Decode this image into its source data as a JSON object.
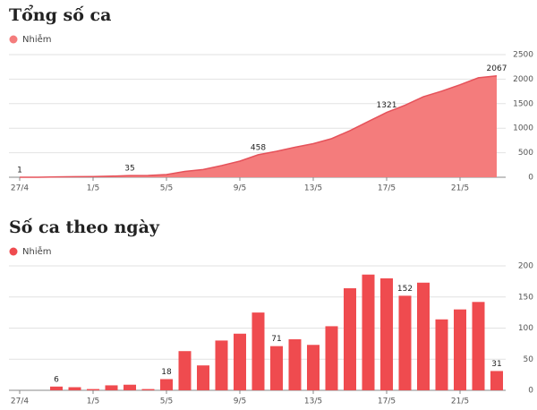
{
  "chart_data": [
    {
      "type": "area",
      "title": "Tổng số ca",
      "categories": [
        "27/4",
        null,
        null,
        null,
        "1/5",
        null,
        null,
        null,
        "5/5",
        null,
        null,
        null,
        "9/5",
        null,
        null,
        null,
        "13/5",
        null,
        null,
        null,
        "17/5",
        null,
        null,
        null,
        "21/5",
        null,
        null
      ],
      "series": [
        {
          "name": "Nhiễm",
          "color": "#f47c7c",
          "line_color": "#e5525a",
          "values": [
            1,
            1,
            7,
            12,
            14,
            22,
            35,
            37,
            55,
            118,
            158,
            238,
            329,
            458,
            529,
            611,
            684,
            787,
            951,
            1137,
            1321,
            1468,
            1641,
            1755,
            1885,
            2027,
            2067
          ],
          "value_labels": [
            "1",
            null,
            null,
            null,
            null,
            null,
            "35",
            null,
            null,
            null,
            null,
            null,
            null,
            "458",
            null,
            null,
            null,
            null,
            null,
            null,
            "1321",
            null,
            null,
            null,
            null,
            null,
            "2067"
          ]
        }
      ],
      "ylim": [
        0,
        2500
      ],
      "yticks": [
        0,
        500,
        1000,
        1500,
        2000,
        2500
      ],
      "grid": true
    },
    {
      "type": "bar",
      "title": "Số ca theo ngày",
      "categories": [
        "27/4",
        null,
        null,
        null,
        "1/5",
        null,
        null,
        null,
        "5/5",
        null,
        null,
        null,
        "9/5",
        null,
        null,
        null,
        "13/5",
        null,
        null,
        null,
        "17/5",
        null,
        null,
        null,
        "21/5",
        null,
        null
      ],
      "series": [
        {
          "name": "Nhiễm",
          "color": "#ef4b4f",
          "values": [
            0,
            0,
            6,
            5,
            2,
            8,
            9,
            2,
            18,
            63,
            40,
            80,
            91,
            125,
            71,
            82,
            73,
            103,
            164,
            186,
            180,
            152,
            173,
            114,
            130,
            142,
            31
          ],
          "value_labels": [
            null,
            null,
            "6",
            null,
            null,
            null,
            null,
            null,
            "18",
            null,
            null,
            null,
            null,
            null,
            "71",
            null,
            null,
            null,
            null,
            null,
            null,
            "152",
            null,
            null,
            null,
            null,
            "31"
          ]
        }
      ],
      "ylim": [
        0,
        200
      ],
      "yticks": [
        0,
        50,
        100,
        150,
        200
      ],
      "grid": true
    }
  ]
}
